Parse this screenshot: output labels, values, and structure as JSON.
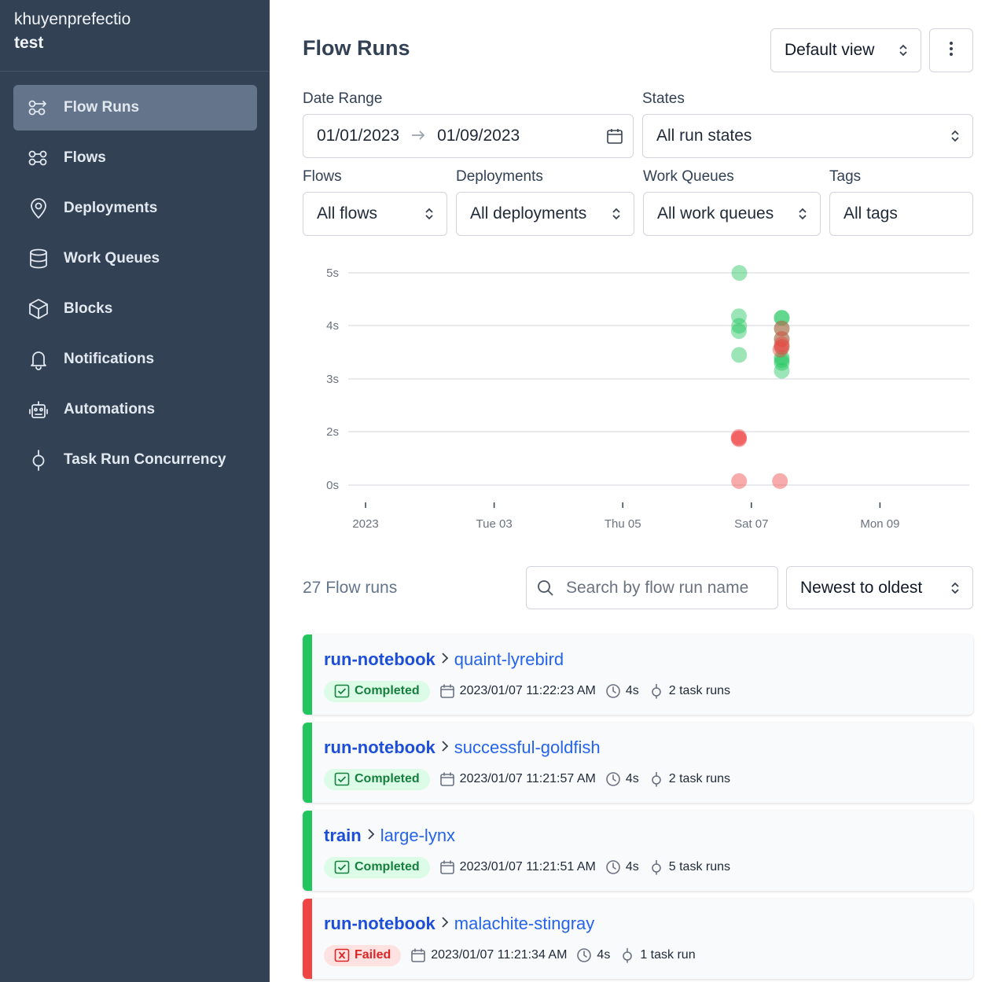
{
  "sidebar": {
    "org": "khuyenprefectio",
    "workspace": "test",
    "items": [
      {
        "label": "Flow Runs",
        "icon": "flow-runs-icon",
        "active": true
      },
      {
        "label": "Flows",
        "icon": "flows-icon"
      },
      {
        "label": "Deployments",
        "icon": "map-pin-icon"
      },
      {
        "label": "Work Queues",
        "icon": "database-icon"
      },
      {
        "label": "Blocks",
        "icon": "cube-icon"
      },
      {
        "label": "Notifications",
        "icon": "bell-icon"
      },
      {
        "label": "Automations",
        "icon": "robot-icon"
      },
      {
        "label": "Task Run Concurrency",
        "icon": "concurrency-icon"
      }
    ]
  },
  "header": {
    "title": "Flow Runs",
    "view_select": "Default view"
  },
  "filters": {
    "date_range": {
      "label": "Date Range",
      "start": "01/01/2023",
      "end": "01/09/2023"
    },
    "states": {
      "label": "States",
      "value": "All run states"
    },
    "flows": {
      "label": "Flows",
      "value": "All flows"
    },
    "deployments": {
      "label": "Deployments",
      "value": "All deployments"
    },
    "work_queues": {
      "label": "Work Queues",
      "value": "All work queues"
    },
    "tags": {
      "label": "Tags",
      "value": "All tags"
    }
  },
  "chart_data": {
    "type": "scatter",
    "title": "",
    "xlabel": "",
    "ylabel": "",
    "x_ticks": [
      "2023",
      "Tue 03",
      "Thu 05",
      "Sat 07",
      "Mon 09"
    ],
    "y_ticks": [
      "0s",
      "2s",
      "3s",
      "4s",
      "5s"
    ],
    "y_tick_values": [
      0,
      2,
      3,
      4,
      5
    ],
    "colors": {
      "completed": "#22c55e",
      "failed": "#ef4444"
    },
    "series": [
      {
        "name": "Completed",
        "color": "#22c55e",
        "points": [
          {
            "x": "2023-01-06 19:30",
            "y": 5.0
          },
          {
            "x": "2023-01-06 19:20",
            "y": 4.18
          },
          {
            "x": "2023-01-06 19:25",
            "y": 4.0
          },
          {
            "x": "2023-01-06 19:20",
            "y": 3.9
          },
          {
            "x": "2023-01-06 19:25",
            "y": 3.45
          },
          {
            "x": "2023-01-07 11:22",
            "y": 4.15
          },
          {
            "x": "2023-01-07 11:21",
            "y": 4.15
          },
          {
            "x": "2023-01-07 11:21",
            "y": 3.95
          },
          {
            "x": "2023-01-07 11:21",
            "y": 3.75
          },
          {
            "x": "2023-01-07 11:21",
            "y": 3.6
          },
          {
            "x": "2023-01-07 11:22",
            "y": 3.4
          },
          {
            "x": "2023-01-07 11:22",
            "y": 3.3
          },
          {
            "x": "2023-01-07 11:21",
            "y": 3.15
          },
          {
            "x": "2023-01-07 11:22",
            "y": 3.35
          }
        ]
      },
      {
        "name": "Failed",
        "color": "#ef4444",
        "points": [
          {
            "x": "2023-01-06 19:20",
            "y": 1.8
          },
          {
            "x": "2023-01-06 19:25",
            "y": 1.72
          },
          {
            "x": "2023-01-06 19:15",
            "y": 1.75
          },
          {
            "x": "2023-01-06 19:25",
            "y": 0.15
          },
          {
            "x": "2023-01-07 10:40",
            "y": 0.15
          },
          {
            "x": "2023-01-07 11:21",
            "y": 3.95
          },
          {
            "x": "2023-01-07 11:21",
            "y": 3.75
          },
          {
            "x": "2023-01-07 11:22",
            "y": 3.6
          },
          {
            "x": "2023-01-07 10:50",
            "y": 3.55
          },
          {
            "x": "2023-01-07 11:22",
            "y": 3.65
          }
        ]
      }
    ]
  },
  "list": {
    "count_label": "27 Flow runs",
    "search_placeholder": "Search by flow run name",
    "sort_value": "Newest to oldest"
  },
  "runs": [
    {
      "flow": "run-notebook",
      "name": "quaint-lyrebird",
      "state": "Completed",
      "start": "2023/01/07 11:22:23 AM",
      "duration": "4s",
      "tasks": "2 task runs",
      "color": "#22c55e"
    },
    {
      "flow": "run-notebook",
      "name": "successful-goldfish",
      "state": "Completed",
      "start": "2023/01/07 11:21:57 AM",
      "duration": "4s",
      "tasks": "2 task runs",
      "color": "#22c55e"
    },
    {
      "flow": "train",
      "name": "large-lynx",
      "state": "Completed",
      "start": "2023/01/07 11:21:51 AM",
      "duration": "4s",
      "tasks": "5 task runs",
      "color": "#22c55e"
    },
    {
      "flow": "run-notebook",
      "name": "malachite-stingray",
      "state": "Failed",
      "start": "2023/01/07 11:21:34 AM",
      "duration": "4s",
      "tasks": "1 task run",
      "color": "#ef4444"
    }
  ]
}
